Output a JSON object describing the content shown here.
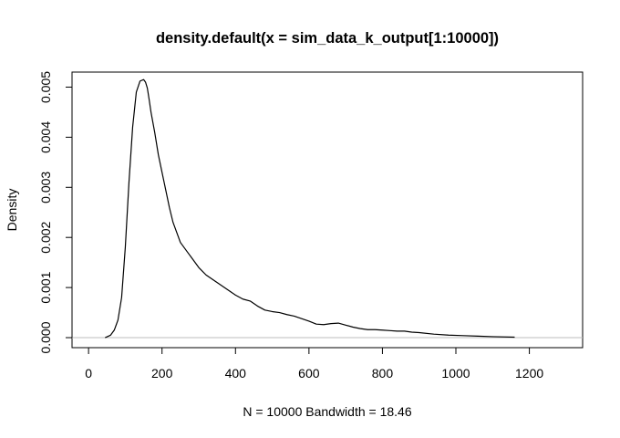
{
  "chart_data": {
    "type": "line",
    "title": "density.default(x = sim_data_k_output[1:10000])",
    "xlabel": "N = 10000   Bandwidth = 18.46",
    "ylabel": "Density",
    "xlim": [
      -45,
      1345
    ],
    "ylim": [
      -0.0002,
      0.0053
    ],
    "xticks": [
      0,
      200,
      400,
      600,
      800,
      1000,
      1200
    ],
    "xtick_labels": [
      "0",
      "200",
      "400",
      "600",
      "800",
      "1000",
      "1200"
    ],
    "yticks": [
      0,
      0.001,
      0.002,
      0.003,
      0.004,
      0.005
    ],
    "ytick_labels": [
      "0.000",
      "0.001",
      "0.002",
      "0.003",
      "0.004",
      "0.005"
    ],
    "baseline": 0,
    "baseline_color": "#bebebe",
    "line_color": "#000000",
    "grid": false,
    "legend": false,
    "x": [
      45,
      60,
      70,
      80,
      90,
      100,
      110,
      120,
      130,
      140,
      150,
      155,
      160,
      165,
      170,
      180,
      190,
      200,
      210,
      220,
      230,
      240,
      250,
      260,
      270,
      280,
      290,
      300,
      320,
      340,
      360,
      380,
      400,
      420,
      440,
      460,
      480,
      500,
      520,
      540,
      560,
      580,
      600,
      620,
      640,
      660,
      680,
      700,
      720,
      740,
      760,
      780,
      800,
      820,
      840,
      860,
      880,
      900,
      940,
      980,
      1020,
      1060,
      1100,
      1160
    ],
    "y": [
      0.0,
      5e-05,
      0.00015,
      0.00035,
      0.0008,
      0.0018,
      0.0031,
      0.0042,
      0.0049,
      0.00512,
      0.00515,
      0.0051,
      0.00498,
      0.00475,
      0.0045,
      0.0041,
      0.00365,
      0.0033,
      0.00295,
      0.0026,
      0.0023,
      0.0021,
      0.0019,
      0.0018,
      0.0017,
      0.0016,
      0.0015,
      0.0014,
      0.00125,
      0.00115,
      0.00105,
      0.00095,
      0.00085,
      0.00077,
      0.00073,
      0.00063,
      0.00055,
      0.00052,
      0.0005,
      0.00046,
      0.00043,
      0.00038,
      0.00033,
      0.00027,
      0.00026,
      0.00028,
      0.00029,
      0.00025,
      0.00021,
      0.00018,
      0.00016,
      0.00016,
      0.00015,
      0.00014,
      0.00013,
      0.00013,
      0.00011,
      0.0001,
      7e-05,
      5e-05,
      4e-05,
      3e-05,
      2e-05,
      1e-05
    ]
  }
}
